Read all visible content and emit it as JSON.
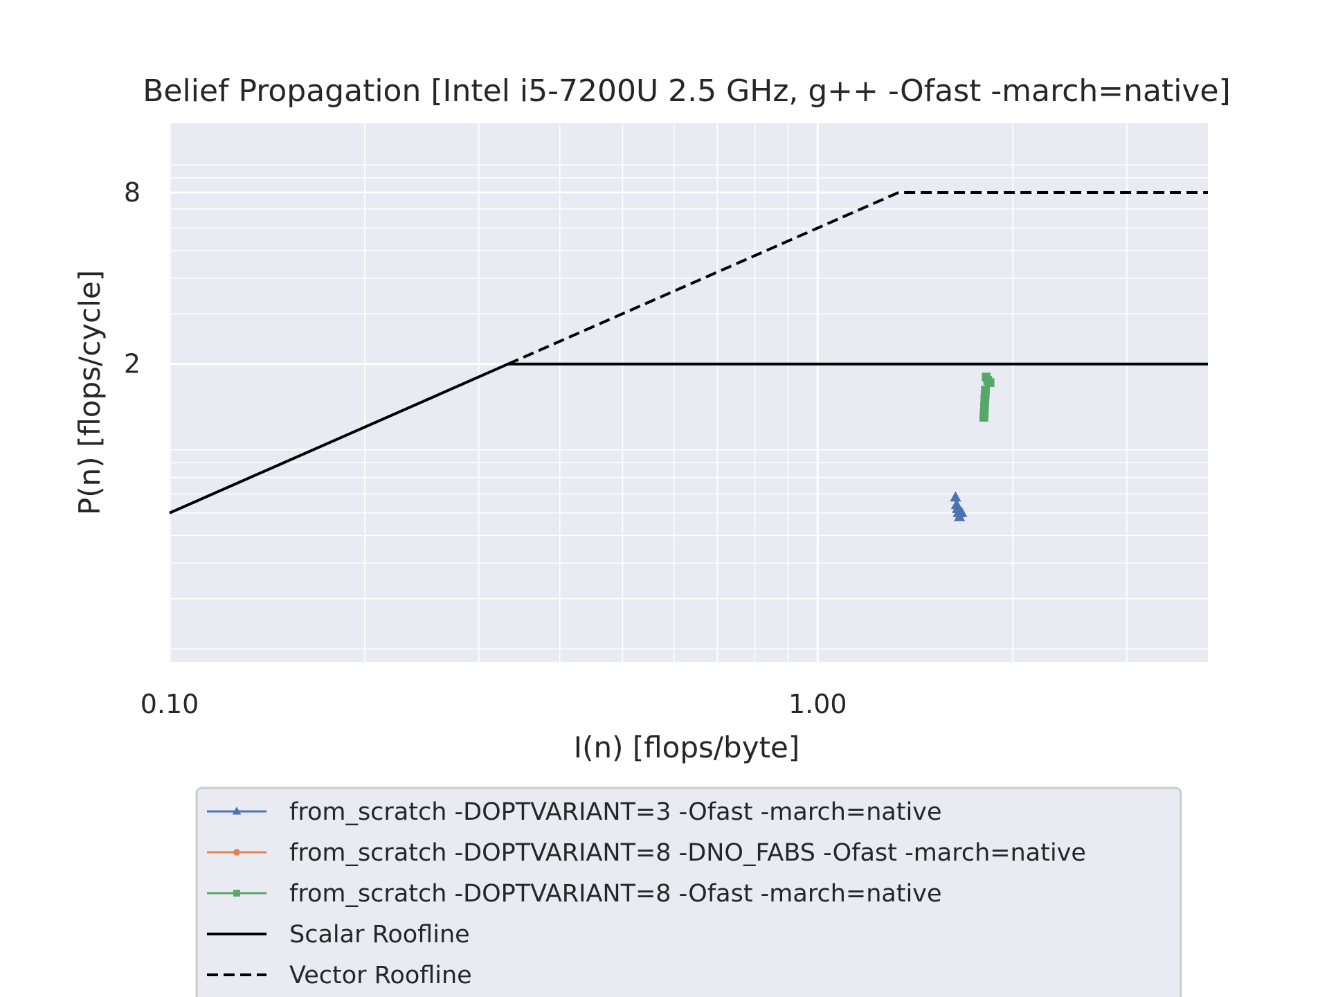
{
  "chart_data": {
    "type": "line",
    "title": "Belief Propagation [Intel i5-7200U 2.5 GHz, g++ -Ofast -march=native]",
    "xlabel": "I(n) [flops/byte]",
    "ylabel": "P(n) [flops/cycle]",
    "x_scale": "log",
    "y_scale": "log",
    "xlim": [
      0.1,
      4.0
    ],
    "ylim": [
      0.18,
      14.0
    ],
    "x_ticks": [
      0.1,
      1.0
    ],
    "x_tick_labels": [
      "0.10",
      "1.00"
    ],
    "y_ticks": [
      2,
      8
    ],
    "y_tick_labels": [
      "2",
      "8"
    ],
    "grid": true,
    "legend_position": "below",
    "series": [
      {
        "name": "from_scratch -DOPTVARIANT=3 -Ofast -march=native",
        "color": "#4c72b0",
        "marker": "triangle",
        "x": [
          1.632,
          1.638,
          1.643,
          1.648,
          1.655,
          1.668
        ],
        "y": [
          0.68,
          0.64,
          0.62,
          0.6,
          0.58,
          0.6
        ]
      },
      {
        "name": "from_scratch -DOPTVARIANT=8 -DNO_FABS -Ofast -march=native",
        "color": "#dd8452",
        "marker": "circle",
        "x": [],
        "y": []
      },
      {
        "name": "from_scratch -DOPTVARIANT=8 -Ofast -march=native",
        "color": "#55a868",
        "marker": "square",
        "x": [
          1.805,
          1.807,
          1.809,
          1.811,
          1.813,
          1.815,
          1.82,
          1.83,
          1.845
        ],
        "y": [
          1.3,
          1.35,
          1.42,
          1.5,
          1.56,
          1.62,
          1.8,
          1.75,
          1.72
        ]
      },
      {
        "name": "Scalar Roofline",
        "color": "#000000",
        "style": "solid",
        "x": [
          0.1,
          0.333,
          4.0
        ],
        "y": [
          0.6,
          2.0,
          2.0
        ]
      },
      {
        "name": "Vector Roofline",
        "color": "#000000",
        "style": "dashed",
        "x": [
          0.333,
          1.333,
          4.0
        ],
        "y": [
          2.0,
          8.0,
          8.0
        ]
      }
    ]
  }
}
